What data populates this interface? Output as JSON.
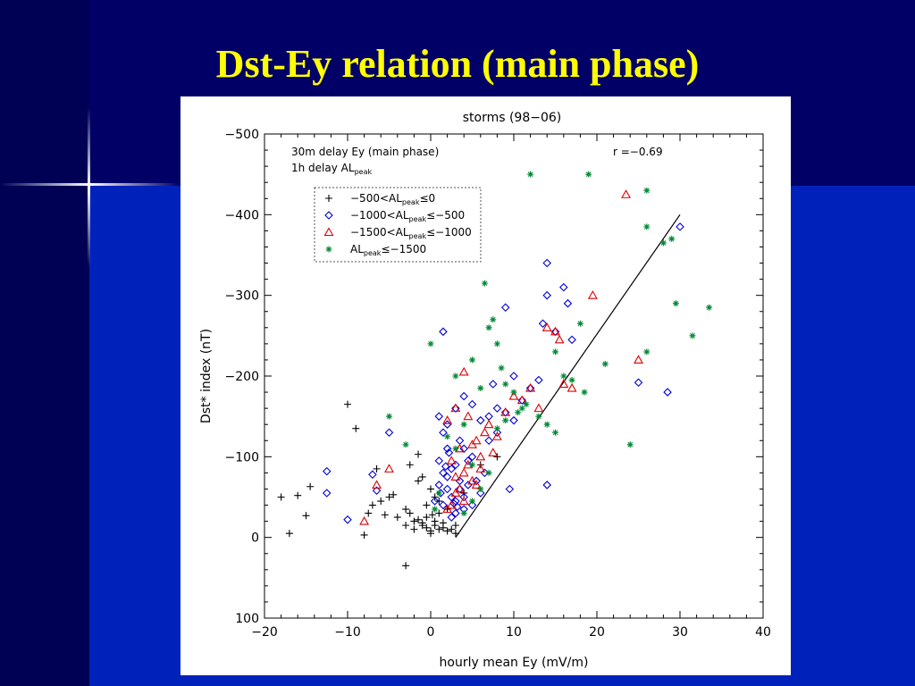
{
  "slide": {
    "title": "Dst-Ey relation (main phase)",
    "background_color": "#000066",
    "accent_band_color": "#0022bb",
    "title_color": "#ffff00"
  },
  "chart_data": {
    "type": "scatter",
    "title": "storms (98−06)",
    "xlabel": "hourly mean Ey (mV/m)",
    "ylabel": "Dst* index (nT)",
    "xlim": [
      -20,
      40
    ],
    "ylim": [
      100,
      -500
    ],
    "y_inverted": true,
    "x_ticks": [
      "−20",
      "−10",
      "0",
      "10",
      "20",
      "30",
      "40"
    ],
    "x_tick_values": [
      -20,
      -10,
      0,
      10,
      20,
      30,
      40
    ],
    "y_ticks": [
      "−500",
      "−400",
      "−300",
      "−200",
      "−100",
      "0",
      "100"
    ],
    "y_tick_values": [
      -500,
      -400,
      -300,
      -200,
      -100,
      0,
      100
    ],
    "annotation_line1": "30m delay Ey (main phase)",
    "annotation_line2_main": "1h delay AL",
    "annotation_line2_sub": "peak",
    "correlation": "r =−0.69",
    "legend_placement": "upper-left",
    "legend_style": "dotted-box",
    "regression_line": {
      "x": [
        3,
        30
      ],
      "y": [
        0,
        -400
      ]
    },
    "series": [
      {
        "name_parts": [
          "−500<AL",
          "peak",
          "≤0"
        ],
        "marker": "plus",
        "color": "#000000",
        "points": [
          [
            -18,
            -50
          ],
          [
            -17,
            -5
          ],
          [
            -16,
            -52
          ],
          [
            -15,
            -27
          ],
          [
            -14.5,
            -63
          ],
          [
            -10,
            -165
          ],
          [
            -9,
            -135
          ],
          [
            -8,
            -3
          ],
          [
            -7.5,
            -30
          ],
          [
            -7,
            -40
          ],
          [
            -6.5,
            -85
          ],
          [
            -6,
            -45
          ],
          [
            -5.5,
            -28
          ],
          [
            -5,
            -50
          ],
          [
            -4.5,
            -53
          ],
          [
            -4,
            -25
          ],
          [
            -3,
            -15
          ],
          [
            -3,
            -35
          ],
          [
            -2.5,
            -30
          ],
          [
            -2,
            -20
          ],
          [
            -2,
            -10
          ],
          [
            -1.5,
            -22
          ],
          [
            -1.5,
            -70
          ],
          [
            -1,
            -15
          ],
          [
            -1,
            -18
          ],
          [
            -0.5,
            -25
          ],
          [
            -0.5,
            -12
          ],
          [
            0,
            -5
          ],
          [
            0,
            -8
          ],
          [
            0.5,
            -20
          ],
          [
            0.5,
            -15
          ],
          [
            1,
            -10
          ],
          [
            1,
            -30
          ],
          [
            1.5,
            -12
          ],
          [
            2,
            -8
          ],
          [
            2.5,
            -10
          ],
          [
            3,
            -5
          ],
          [
            3,
            -15
          ],
          [
            -1,
            -75
          ],
          [
            -2.5,
            -90
          ],
          [
            -1.5,
            -103
          ],
          [
            -3,
            35
          ],
          [
            0.5,
            -50
          ],
          [
            1,
            -45
          ],
          [
            2,
            -35
          ],
          [
            0,
            -60
          ],
          [
            4,
            -55
          ],
          [
            6,
            -90
          ],
          [
            8,
            -100
          ],
          [
            1.5,
            -18
          ],
          [
            -0.5,
            -40
          ],
          [
            0.2,
            -28
          ]
        ]
      },
      {
        "name_parts": [
          "−1000<AL",
          "peak",
          "≤−500"
        ],
        "marker": "diamond",
        "color": "#0000dd",
        "points": [
          [
            -12.5,
            -82
          ],
          [
            -12.5,
            -55
          ],
          [
            -10,
            -22
          ],
          [
            -7,
            -78
          ],
          [
            -6.5,
            -58
          ],
          [
            -5,
            -130
          ],
          [
            1.5,
            -255
          ],
          [
            1,
            -95
          ],
          [
            1.5,
            -80
          ],
          [
            2,
            -75
          ],
          [
            2.5,
            -85
          ],
          [
            3,
            -90
          ],
          [
            3.5,
            -70
          ],
          [
            2,
            -110
          ],
          [
            1,
            -150
          ],
          [
            1.5,
            -130
          ],
          [
            2,
            -140
          ],
          [
            3,
            -160
          ],
          [
            4,
            -175
          ],
          [
            5,
            -165
          ],
          [
            6,
            -145
          ],
          [
            7,
            -150
          ],
          [
            7.5,
            -190
          ],
          [
            8,
            -160
          ],
          [
            9,
            -285
          ],
          [
            10,
            -200
          ],
          [
            11,
            -170
          ],
          [
            12,
            -185
          ],
          [
            13.5,
            -265
          ],
          [
            14,
            -340
          ],
          [
            14,
            -300
          ],
          [
            15,
            -255
          ],
          [
            16,
            -310
          ],
          [
            16.5,
            -290
          ],
          [
            17,
            -245
          ],
          [
            13,
            -195
          ],
          [
            14,
            -65
          ],
          [
            25,
            -192
          ],
          [
            28.5,
            -180
          ],
          [
            30,
            -385
          ],
          [
            3,
            -45
          ],
          [
            4,
            -50
          ],
          [
            5,
            -40
          ],
          [
            3.5,
            -60
          ],
          [
            4.5,
            -65
          ],
          [
            5.5,
            -70
          ],
          [
            2,
            -60
          ],
          [
            2.5,
            -50
          ],
          [
            1.5,
            -40
          ],
          [
            3,
            -30
          ],
          [
            4,
            -35
          ],
          [
            2.5,
            -25
          ],
          [
            3.5,
            -120
          ],
          [
            4,
            -110
          ],
          [
            4.5,
            -95
          ],
          [
            5,
            -100
          ],
          [
            1,
            -65
          ],
          [
            0.5,
            -45
          ],
          [
            1.2,
            -55
          ],
          [
            2.8,
            -42
          ],
          [
            3.2,
            -38
          ],
          [
            6,
            -55
          ],
          [
            6.5,
            -80
          ],
          [
            7,
            -120
          ],
          [
            8,
            -130
          ],
          [
            9,
            -155
          ],
          [
            10,
            -145
          ],
          [
            9.5,
            -60
          ],
          [
            2.2,
            -105
          ],
          [
            1.8,
            -88
          ]
        ]
      },
      {
        "name_parts": [
          "−1500<AL",
          "peak",
          "≤−1000"
        ],
        "marker": "triangle",
        "color": "#dd0000",
        "points": [
          [
            -8,
            -20
          ],
          [
            -6.5,
            -65
          ],
          [
            -5,
            -85
          ],
          [
            2,
            -145
          ],
          [
            3,
            -160
          ],
          [
            4,
            -205
          ],
          [
            4.5,
            -150
          ],
          [
            5,
            -115
          ],
          [
            5.5,
            -120
          ],
          [
            6,
            -100
          ],
          [
            6.5,
            -130
          ],
          [
            7,
            -140
          ],
          [
            7.5,
            -105
          ],
          [
            8,
            -125
          ],
          [
            9,
            -155
          ],
          [
            10,
            -175
          ],
          [
            11,
            -170
          ],
          [
            12,
            -185
          ],
          [
            13,
            -160
          ],
          [
            14,
            -260
          ],
          [
            15,
            -255
          ],
          [
            15.5,
            -245
          ],
          [
            16,
            -190
          ],
          [
            17,
            -185
          ],
          [
            19.5,
            -300
          ],
          [
            23.5,
            -425
          ],
          [
            25,
            -220
          ],
          [
            3,
            -55
          ],
          [
            3.5,
            -60
          ],
          [
            4,
            -45
          ],
          [
            2.5,
            -40
          ],
          [
            2,
            -35
          ],
          [
            3,
            -75
          ],
          [
            4,
            -80
          ],
          [
            5,
            -70
          ],
          [
            5.5,
            -65
          ],
          [
            6,
            -85
          ],
          [
            3.5,
            -110
          ],
          [
            2.5,
            -95
          ],
          [
            4.5,
            -90
          ]
        ]
      },
      {
        "name_parts": [
          "AL",
          "peak",
          "≤−1500"
        ],
        "marker": "asterisk",
        "color": "#008833",
        "points": [
          [
            -5,
            -150
          ],
          [
            -3,
            -115
          ],
          [
            0,
            -240
          ],
          [
            3,
            -200
          ],
          [
            5,
            -220
          ],
          [
            6,
            -185
          ],
          [
            6.5,
            -315
          ],
          [
            7,
            -260
          ],
          [
            7.5,
            -270
          ],
          [
            8,
            -240
          ],
          [
            8.5,
            -210
          ],
          [
            9,
            -190
          ],
          [
            10,
            -180
          ],
          [
            11,
            -160
          ],
          [
            12,
            -450
          ],
          [
            13,
            -150
          ],
          [
            14,
            -140
          ],
          [
            15,
            -230
          ],
          [
            16,
            -200
          ],
          [
            17,
            -195
          ],
          [
            18,
            -265
          ],
          [
            18.5,
            -180
          ],
          [
            19,
            -450
          ],
          [
            21,
            -215
          ],
          [
            24,
            -115
          ],
          [
            26,
            -430
          ],
          [
            26,
            -385
          ],
          [
            26,
            -230
          ],
          [
            28,
            -365
          ],
          [
            29,
            -370
          ],
          [
            29.5,
            -290
          ],
          [
            31.5,
            -250
          ],
          [
            33.5,
            -285
          ],
          [
            15,
            -130
          ],
          [
            4,
            -140
          ],
          [
            3,
            -110
          ],
          [
            5,
            -90
          ],
          [
            6,
            -60
          ],
          [
            7,
            -80
          ],
          [
            4,
            -30
          ],
          [
            5,
            -45
          ],
          [
            2,
            -125
          ],
          [
            1,
            -55
          ],
          [
            0.5,
            -35
          ],
          [
            8,
            -135
          ],
          [
            9,
            -145
          ],
          [
            10.5,
            -155
          ],
          [
            11.5,
            -165
          ]
        ]
      }
    ]
  }
}
